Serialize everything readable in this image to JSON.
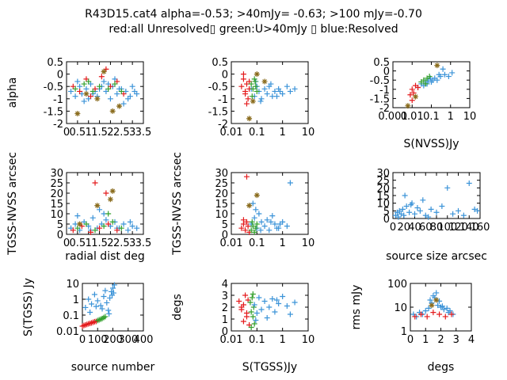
{
  "title_line1": "R43D15.cat4 alpha=-0.53; >40mJy= -0.63; >100 mJy=-0.70",
  "title_line2": "red:all Unresolved▯ green:U>40mJy ▯ blue:Resolved",
  "colors": {
    "red": "#e41a1c",
    "green": "#33a02c",
    "blue": "#3b93d8",
    "olive": "#8b6d1f"
  },
  "chart_data": [
    {
      "id": "p1",
      "type": "scatter",
      "ylabel": "alpha",
      "xlabel": "",
      "xlim": [
        0,
        3.5
      ],
      "ylim": [
        -2,
        0.5
      ],
      "xscale": "linear",
      "yscale": "linear",
      "xtick_labels": [
        "0",
        "0.5",
        "1",
        "1.5",
        "2",
        "2.5",
        "3",
        "3.5"
      ],
      "ytick_labels": [
        "-2",
        "-1.5",
        "-1",
        "-0.5",
        "0",
        "0.5"
      ],
      "series": [
        {
          "color": "blue",
          "x": [
            0.2,
            0.4,
            0.6,
            0.8,
            0.9,
            1.1,
            1.2,
            1.4,
            1.5,
            1.7,
            1.8,
            2.0,
            2.1,
            2.3,
            2.4,
            2.6,
            2.7,
            2.9,
            3.0,
            3.2,
            0.5,
            1.0,
            1.6,
            2.2,
            2.8,
            1.3,
            1.9,
            2.5,
            0.7,
            3.1
          ],
          "y": [
            -0.7,
            -0.9,
            -0.5,
            -1.1,
            -0.6,
            -0.4,
            -0.8,
            -0.9,
            -0.6,
            -0.3,
            -0.7,
            -1.0,
            -0.5,
            -0.8,
            -0.6,
            -1.2,
            -0.7,
            -0.9,
            -0.5,
            -0.8,
            -0.3,
            -1.0,
            -0.5,
            -0.2,
            -1.0,
            -0.7,
            -0.4,
            -0.6,
            -0.8,
            -0.7
          ]
        },
        {
          "color": "red",
          "x": [
            0.3,
            0.6,
            0.9,
            1.3,
            1.6,
            2.0,
            2.3,
            2.6,
            1.1,
            1.8
          ],
          "y": [
            -0.5,
            -0.7,
            -0.2,
            -0.6,
            -0.1,
            -0.5,
            -0.3,
            -0.8,
            -0.9,
            0.2
          ]
        },
        {
          "color": "green",
          "x": [
            0.4,
            0.8,
            1.2,
            1.5,
            1.9,
            2.2,
            2.5,
            1.0
          ],
          "y": [
            -0.6,
            -0.4,
            -0.7,
            -0.5,
            -0.6,
            -0.4,
            -0.7,
            -0.3
          ]
        },
        {
          "color": "olive",
          "x": [
            0.5,
            1.4,
            2.4,
            1.7,
            2.1,
            0.9
          ],
          "y": [
            -1.6,
            -1.0,
            -1.3,
            0.1,
            -1.5,
            -0.8
          ]
        }
      ]
    },
    {
      "id": "p2",
      "type": "scatter",
      "ylabel": "",
      "xlabel": "",
      "xlim": [
        0.01,
        10
      ],
      "ylim": [
        -2,
        0.5
      ],
      "xscale": "log",
      "yscale": "linear",
      "xtick_labels": [
        "0.01",
        "0.1",
        "1",
        "10"
      ],
      "ytick_labels": [
        "-2",
        "-1.5",
        "-1",
        "-0.5",
        "0",
        "0.5"
      ],
      "series": [
        {
          "color": "blue",
          "x": [
            0.06,
            0.08,
            0.1,
            0.12,
            0.15,
            0.2,
            0.25,
            0.3,
            0.4,
            0.5,
            0.7,
            1.0,
            1.5,
            2.0,
            3.0,
            0.09,
            0.14,
            0.35,
            0.6,
            0.8
          ],
          "y": [
            -0.6,
            -0.9,
            -0.5,
            -0.7,
            -1.0,
            -0.6,
            -0.8,
            -0.5,
            -0.9,
            -0.7,
            -0.6,
            -0.8,
            -0.5,
            -0.7,
            -0.6,
            -0.3,
            -1.1,
            -0.4,
            -0.9,
            -0.7
          ]
        },
        {
          "color": "red",
          "x": [
            0.025,
            0.03,
            0.035,
            0.04,
            0.045,
            0.05,
            0.03,
            0.04,
            0.05,
            0.035
          ],
          "y": [
            -0.5,
            -0.2,
            -0.8,
            -0.4,
            -1.0,
            -0.6,
            0.0,
            -1.2,
            -0.3,
            -0.7
          ]
        },
        {
          "color": "green",
          "x": [
            0.06,
            0.07,
            0.08,
            0.09,
            0.1,
            0.065,
            0.085
          ],
          "y": [
            -0.4,
            -0.6,
            -0.2,
            -0.5,
            -0.7,
            -0.9,
            -0.3
          ]
        },
        {
          "color": "olive",
          "x": [
            0.05,
            0.07,
            0.1,
            0.2
          ],
          "y": [
            -1.8,
            -1.1,
            0.0,
            -0.3
          ]
        }
      ]
    },
    {
      "id": "p3",
      "type": "scatter",
      "ylabel": "",
      "xlabel": "S(NVSS)Jy",
      "xlim": [
        0.001,
        10
      ],
      "ylim": [
        -2,
        0.5
      ],
      "xscale": "log",
      "yscale": "linear",
      "xtick_labels": [
        "0.001",
        "0.01",
        "0.1",
        "1",
        "10"
      ],
      "ytick_labels": [
        "-2",
        "-1.5",
        "-1",
        "-0.5",
        "0",
        "0.5"
      ],
      "series": [
        {
          "color": "blue",
          "x": [
            0.02,
            0.03,
            0.04,
            0.05,
            0.07,
            0.1,
            0.15,
            0.2,
            0.3,
            0.5,
            0.8,
            1.2,
            0.06,
            0.09,
            0.12,
            0.25,
            0.4
          ],
          "y": [
            -0.9,
            -0.7,
            -0.8,
            -0.6,
            -0.5,
            -0.6,
            -0.4,
            -0.5,
            -0.3,
            -0.2,
            -0.3,
            -0.1,
            -0.7,
            -0.4,
            -0.5,
            -0.2,
            0.1
          ]
        },
        {
          "color": "red",
          "x": [
            0.008,
            0.01,
            0.012,
            0.015,
            0.02,
            0.01
          ],
          "y": [
            -1.3,
            -1.0,
            -1.2,
            -0.8,
            -0.9,
            -1.6
          ]
        },
        {
          "color": "green",
          "x": [
            0.03,
            0.04,
            0.05,
            0.06,
            0.08
          ],
          "y": [
            -0.6,
            -0.5,
            -0.7,
            -0.4,
            -0.3
          ]
        },
        {
          "color": "olive",
          "x": [
            0.006,
            0.015,
            0.2
          ],
          "y": [
            -1.9,
            -1.4,
            0.3
          ]
        }
      ]
    },
    {
      "id": "p4",
      "type": "scatter",
      "ylabel": "TGSS-NVSS arcsec",
      "xlabel": "radial dist deg",
      "xlim": [
        0,
        3.5
      ],
      "ylim": [
        0,
        30
      ],
      "xscale": "linear",
      "yscale": "linear",
      "xtick_labels": [
        "0",
        "0.5",
        "1",
        "1.5",
        "2",
        "2.5",
        "3",
        "3.5"
      ],
      "ytick_labels": [
        "0",
        "5",
        "10",
        "15",
        "20",
        "25",
        "30"
      ],
      "series": [
        {
          "color": "blue",
          "x": [
            0.2,
            0.4,
            0.6,
            0.8,
            1.0,
            1.2,
            1.4,
            1.6,
            1.8,
            2.0,
            2.2,
            2.4,
            2.6,
            2.8,
            3.0,
            3.2,
            0.5,
            1.1,
            1.7,
            2.3,
            2.9,
            1.5
          ],
          "y": [
            3,
            5,
            2,
            6,
            4,
            8,
            3,
            5,
            7,
            4,
            6,
            3,
            5,
            2,
            4,
            3,
            9,
            2,
            10,
            3,
            6,
            12
          ]
        },
        {
          "color": "red",
          "x": [
            0.3,
            0.7,
            1.1,
            1.5,
            1.9,
            2.3,
            1.3,
            1.8
          ],
          "y": [
            2,
            4,
            1,
            3,
            5,
            2,
            25,
            20
          ]
        },
        {
          "color": "green",
          "x": [
            0.5,
            0.9,
            1.3,
            1.7,
            2.1,
            2.5,
            1.9
          ],
          "y": [
            3,
            5,
            2,
            4,
            6,
            3,
            10
          ]
        },
        {
          "color": "olive",
          "x": [
            1.4,
            2.0,
            2.1,
            0.6
          ],
          "y": [
            14,
            17,
            21,
            5
          ]
        }
      ]
    },
    {
      "id": "p5",
      "type": "scatter",
      "ylabel": "TGSS-NVSS arcsec",
      "xlabel": "",
      "xlim": [
        0.01,
        10
      ],
      "ylim": [
        0,
        30
      ],
      "xscale": "log",
      "yscale": "linear",
      "xtick_labels": [
        "0.01",
        "0.1",
        "1",
        "10"
      ],
      "ytick_labels": [
        "0",
        "5",
        "10",
        "15",
        "20",
        "25",
        "30"
      ],
      "series": [
        {
          "color": "blue",
          "x": [
            0.06,
            0.08,
            0.1,
            0.12,
            0.15,
            0.2,
            0.25,
            0.3,
            0.4,
            0.5,
            0.7,
            1.0,
            1.5,
            2.0,
            0.09,
            0.14,
            0.35,
            0.6,
            0.8,
            0.07
          ],
          "y": [
            5,
            8,
            3,
            10,
            6,
            4,
            7,
            2,
            9,
            5,
            3,
            6,
            4,
            25,
            12,
            2,
            6,
            3,
            5,
            15
          ]
        },
        {
          "color": "red",
          "x": [
            0.025,
            0.03,
            0.035,
            0.04,
            0.045,
            0.05,
            0.04,
            0.03
          ],
          "y": [
            3,
            5,
            2,
            6,
            4,
            1,
            28,
            7
          ]
        },
        {
          "color": "green",
          "x": [
            0.06,
            0.07,
            0.08,
            0.09,
            0.1,
            0.065
          ],
          "y": [
            2,
            4,
            1,
            3,
            5,
            6
          ]
        },
        {
          "color": "olive",
          "x": [
            0.05,
            0.1
          ],
          "y": [
            14,
            19
          ]
        }
      ]
    },
    {
      "id": "p6",
      "type": "scatter",
      "ylabel": "",
      "xlabel": "source size arcsec",
      "xlim": [
        0,
        160
      ],
      "ylim": [
        0,
        30
      ],
      "xscale": "linear",
      "yscale": "linear",
      "xtick_labels": [
        "0",
        "20",
        "40",
        "60",
        "80",
        "100",
        "120",
        "140",
        "160"
      ],
      "ytick_labels": [
        "0",
        "5",
        "10",
        "15",
        "20",
        "25",
        "30"
      ],
      "series": [
        {
          "color": "blue",
          "x": [
            5,
            8,
            10,
            12,
            15,
            18,
            20,
            25,
            30,
            35,
            40,
            45,
            50,
            55,
            60,
            70,
            80,
            90,
            100,
            110,
            120,
            130,
            140,
            150,
            155,
            22,
            33,
            65
          ],
          "y": [
            2,
            4,
            1,
            5,
            3,
            6,
            2,
            8,
            4,
            10,
            3,
            7,
            5,
            12,
            2,
            6,
            4,
            8,
            20,
            3,
            5,
            2,
            23,
            6,
            5,
            15,
            9,
            1
          ]
        }
      ]
    },
    {
      "id": "p7",
      "type": "scatter",
      "ylabel": "S(TGSS) Jy",
      "xlabel": "source number",
      "xlim": [
        0,
        400
      ],
      "ylim": [
        0.01,
        10
      ],
      "xscale": "linear",
      "yscale": "log",
      "xtick_labels": [
        "0",
        "100",
        "200",
        "300",
        "400"
      ],
      "ytick_labels": [
        "0.01",
        "0.1",
        "1",
        "10"
      ],
      "series": [
        {
          "color": "red",
          "x": [
            0,
            10,
            20,
            30,
            40,
            50,
            60,
            70,
            80,
            90
          ],
          "y": [
            0.02,
            0.022,
            0.024,
            0.026,
            0.028,
            0.03,
            0.032,
            0.035,
            0.038,
            0.04
          ]
        },
        {
          "color": "green",
          "x": [
            100,
            110,
            120,
            130,
            140,
            150
          ],
          "y": [
            0.045,
            0.05,
            0.055,
            0.06,
            0.07,
            0.08
          ]
        },
        {
          "color": "blue",
          "x": [
            20,
            40,
            60,
            80,
            100,
            120,
            140,
            160,
            170,
            180,
            190,
            200,
            205,
            210,
            50,
            90,
            130,
            150,
            175,
            195
          ],
          "y": [
            0.3,
            1.0,
            0.5,
            2.0,
            0.8,
            0.4,
            1.5,
            0.6,
            0.2,
            1.2,
            3.0,
            5.0,
            2.5,
            8.0,
            0.15,
            0.35,
            0.25,
            3.5,
            0.12,
            1.8
          ]
        }
      ]
    },
    {
      "id": "p8",
      "type": "scatter",
      "ylabel": "degs",
      "xlabel": "S(TGSS)Jy",
      "xlim": [
        0.01,
        10
      ],
      "ylim": [
        0,
        4
      ],
      "xscale": "log",
      "yscale": "linear",
      "xtick_labels": [
        "0.01",
        "0.1",
        "1",
        "10"
      ],
      "ytick_labels": [
        "0",
        "1",
        "2",
        "3",
        "4"
      ],
      "series": [
        {
          "color": "red",
          "x": [
            0.02,
            0.025,
            0.03,
            0.035,
            0.04,
            0.045,
            0.05,
            0.03,
            0.04,
            0.025
          ],
          "y": [
            2.5,
            1.8,
            2.2,
            3.0,
            1.5,
            2.6,
            0.5,
            0.8,
            1.2,
            2.0
          ]
        },
        {
          "color": "green",
          "x": [
            0.055,
            0.06,
            0.065,
            0.07,
            0.075,
            0.08,
            0.06,
            0.07
          ],
          "y": [
            2.4,
            1.6,
            2.8,
            1.2,
            2.0,
            0.6,
            0.3,
            3.1
          ]
        },
        {
          "color": "blue",
          "x": [
            0.08,
            0.1,
            0.12,
            0.15,
            0.2,
            0.3,
            0.4,
            0.5,
            0.7,
            1.0,
            1.5,
            2.0,
            0.09,
            0.25,
            0.6,
            3.0
          ],
          "y": [
            2.2,
            1.5,
            2.8,
            1.8,
            2.5,
            2.0,
            2.7,
            1.6,
            2.3,
            2.9,
            2.1,
            1.4,
            0.9,
            1.1,
            2.6,
            2.4
          ]
        }
      ]
    },
    {
      "id": "p9",
      "type": "scatter",
      "ylabel": "rms mJy",
      "xlabel": "degs",
      "xlim": [
        0,
        4
      ],
      "ylim": [
        1,
        100
      ],
      "xscale": "linear",
      "yscale": "log",
      "xtick_labels": [
        "0",
        "1",
        "2",
        "3",
        "4"
      ],
      "ytick_labels": [
        "1",
        "10",
        "100"
      ],
      "series": [
        {
          "color": "blue",
          "x": [
            0.2,
            0.4,
            0.6,
            0.8,
            1.0,
            1.2,
            1.4,
            1.5,
            1.6,
            1.8,
            2.0,
            2.2,
            2.4,
            2.6,
            2.8,
            1.3,
            1.7,
            2.1,
            2.5,
            1.9
          ],
          "y": [
            5,
            4,
            6,
            5,
            7,
            9,
            15,
            30,
            25,
            12,
            10,
            8,
            9,
            7,
            5,
            20,
            40,
            11,
            6,
            18
          ]
        },
        {
          "color": "red",
          "x": [
            0.3,
            0.7,
            1.1,
            1.5,
            1.9,
            2.3,
            2.7
          ],
          "y": [
            4,
            5,
            4,
            6,
            5,
            4,
            5
          ]
        },
        {
          "color": "olive",
          "x": [
            1.4,
            1.7
          ],
          "y": [
            12,
            20
          ]
        }
      ]
    }
  ]
}
